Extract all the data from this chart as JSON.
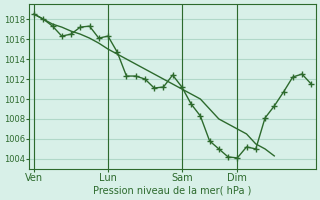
{
  "background_color": "#d8f0e8",
  "grid_color": "#b0d8c8",
  "line_color": "#2d6a2d",
  "marker_color": "#2d6a2d",
  "xlabel": "Pression niveau de la mer( hPa )",
  "ylim": [
    1003,
    1019.5
  ],
  "yticks": [
    1004,
    1006,
    1008,
    1010,
    1012,
    1014,
    1016,
    1018
  ],
  "day_labels": [
    "Ven",
    "Lun",
    "Sam",
    "Dim"
  ],
  "day_positions": [
    0,
    8,
    16,
    22
  ],
  "series1_x": [
    0,
    1,
    2,
    3,
    4,
    5,
    6,
    7,
    8,
    9,
    10,
    11,
    12,
    13,
    14,
    15,
    16,
    17,
    18,
    19,
    20,
    21,
    22,
    23,
    24,
    25,
    26
  ],
  "series1_y": [
    1018.5,
    1018.0,
    1017.5,
    1017.2,
    1016.8,
    1016.5,
    1016.1,
    1015.6,
    1015.0,
    1014.5,
    1014.0,
    1013.5,
    1013.0,
    1012.5,
    1012.0,
    1011.5,
    1011.0,
    1010.5,
    1010.0,
    1009.0,
    1008.0,
    1007.5,
    1007.0,
    1006.5,
    1005.5,
    1005.0,
    1004.3
  ],
  "series2_x": [
    0,
    1,
    2,
    3,
    4,
    5,
    6,
    7,
    8,
    9,
    10,
    11,
    12,
    13,
    14,
    15,
    16,
    17,
    18,
    19,
    20,
    21,
    22,
    23,
    24,
    25,
    26,
    27,
    28,
    29,
    30
  ],
  "series2_y": [
    1018.5,
    1018.0,
    1017.3,
    1016.3,
    1016.5,
    1017.2,
    1017.3,
    1016.1,
    1016.3,
    1014.7,
    1012.3,
    1012.3,
    1012.0,
    1011.1,
    1011.2,
    1012.4,
    1011.2,
    1009.5,
    1008.3,
    1005.8,
    1005.0,
    1004.2,
    1004.1,
    1005.2,
    1005.0,
    1008.1,
    1009.3,
    1010.7,
    1012.2,
    1012.5,
    1011.5
  ]
}
